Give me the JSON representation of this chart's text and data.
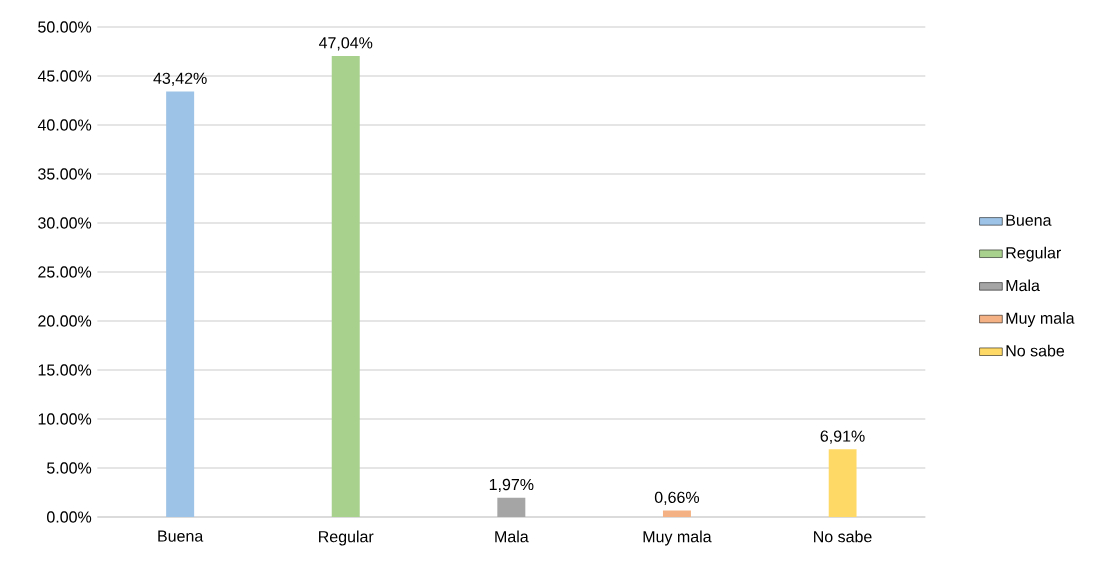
{
  "chart_data": {
    "type": "bar",
    "categories": [
      "Buena",
      "Regular",
      "Mala",
      "Muy mala",
      "No sabe"
    ],
    "series": [
      {
        "name": "Buena",
        "color": "#9dc3e6",
        "values": [
          43.42,
          null,
          null,
          null,
          null
        ],
        "value_labels": [
          "43,42%",
          null,
          null,
          null,
          null
        ]
      },
      {
        "name": "Regular",
        "color": "#a9d18e",
        "values": [
          null,
          47.04,
          null,
          null,
          null
        ],
        "value_labels": [
          null,
          "47,04%",
          null,
          null,
          null
        ]
      },
      {
        "name": "Mala",
        "color": "#a5a5a5",
        "values": [
          null,
          null,
          1.97,
          null,
          null
        ],
        "value_labels": [
          null,
          null,
          "1,97%",
          null,
          null
        ]
      },
      {
        "name": "Muy mala",
        "color": "#f4b183",
        "values": [
          null,
          null,
          null,
          0.66,
          null
        ],
        "value_labels": [
          null,
          null,
          null,
          "0,66%",
          null
        ]
      },
      {
        "name": "No sabe",
        "color": "#ffd966",
        "values": [
          null,
          null,
          null,
          null,
          6.91
        ],
        "value_labels": [
          null,
          null,
          null,
          null,
          "6,91%"
        ]
      }
    ],
    "ylim": [
      0,
      50
    ],
    "yticks": [
      {
        "value": 0,
        "label": "0.00%"
      },
      {
        "value": 5,
        "label": "5.00%"
      },
      {
        "value": 10,
        "label": "10.00%"
      },
      {
        "value": 15,
        "label": "15.00%"
      },
      {
        "value": 20,
        "label": "20.00%"
      },
      {
        "value": 25,
        "label": "25.00%"
      },
      {
        "value": 30,
        "label": "30.00%"
      },
      {
        "value": 35,
        "label": "35.00%"
      },
      {
        "value": 40,
        "label": "40.00%"
      },
      {
        "value": 45,
        "label": "45.00%"
      },
      {
        "value": 50,
        "label": "50.00%"
      }
    ],
    "grid": "y",
    "legend": "right"
  }
}
